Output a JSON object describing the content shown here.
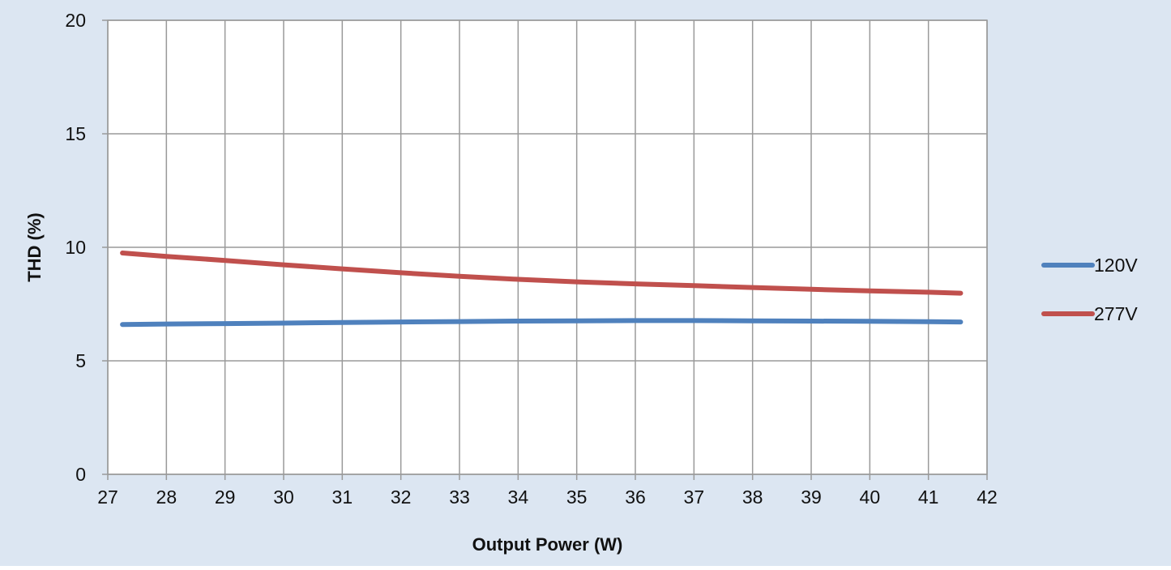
{
  "chart_data": {
    "type": "line",
    "xlabel": "Output Power (W)",
    "ylabel": "THD (%)",
    "xlim": [
      27,
      42
    ],
    "ylim": [
      0,
      20
    ],
    "x_ticks": [
      27,
      28,
      29,
      30,
      31,
      32,
      33,
      34,
      35,
      36,
      37,
      38,
      39,
      40,
      41,
      42
    ],
    "y_ticks": [
      0,
      5,
      10,
      15,
      20
    ],
    "grid": true,
    "legend_position": "right",
    "series": [
      {
        "name": "120V",
        "color": "#4F81BD",
        "x": [
          27.25,
          28,
          29,
          30,
          31,
          32,
          33,
          34,
          35,
          36,
          37,
          38,
          39,
          40,
          41,
          41.55
        ],
        "y": [
          6.6,
          6.62,
          6.64,
          6.66,
          6.69,
          6.71,
          6.73,
          6.75,
          6.76,
          6.77,
          6.77,
          6.76,
          6.75,
          6.74,
          6.72,
          6.71
        ]
      },
      {
        "name": "277V",
        "color": "#C0504D",
        "x": [
          27.25,
          28,
          29,
          30,
          31,
          32,
          33,
          34,
          35,
          36,
          37,
          38,
          39,
          40,
          41,
          41.55
        ],
        "y": [
          9.75,
          9.6,
          9.42,
          9.23,
          9.05,
          8.88,
          8.72,
          8.59,
          8.48,
          8.39,
          8.31,
          8.23,
          8.15,
          8.08,
          8.02,
          7.98
        ]
      }
    ]
  },
  "colors": {
    "background": "#DCE6F2",
    "plot_area": "#FFFFFF",
    "grid": "#9A9A9A"
  }
}
